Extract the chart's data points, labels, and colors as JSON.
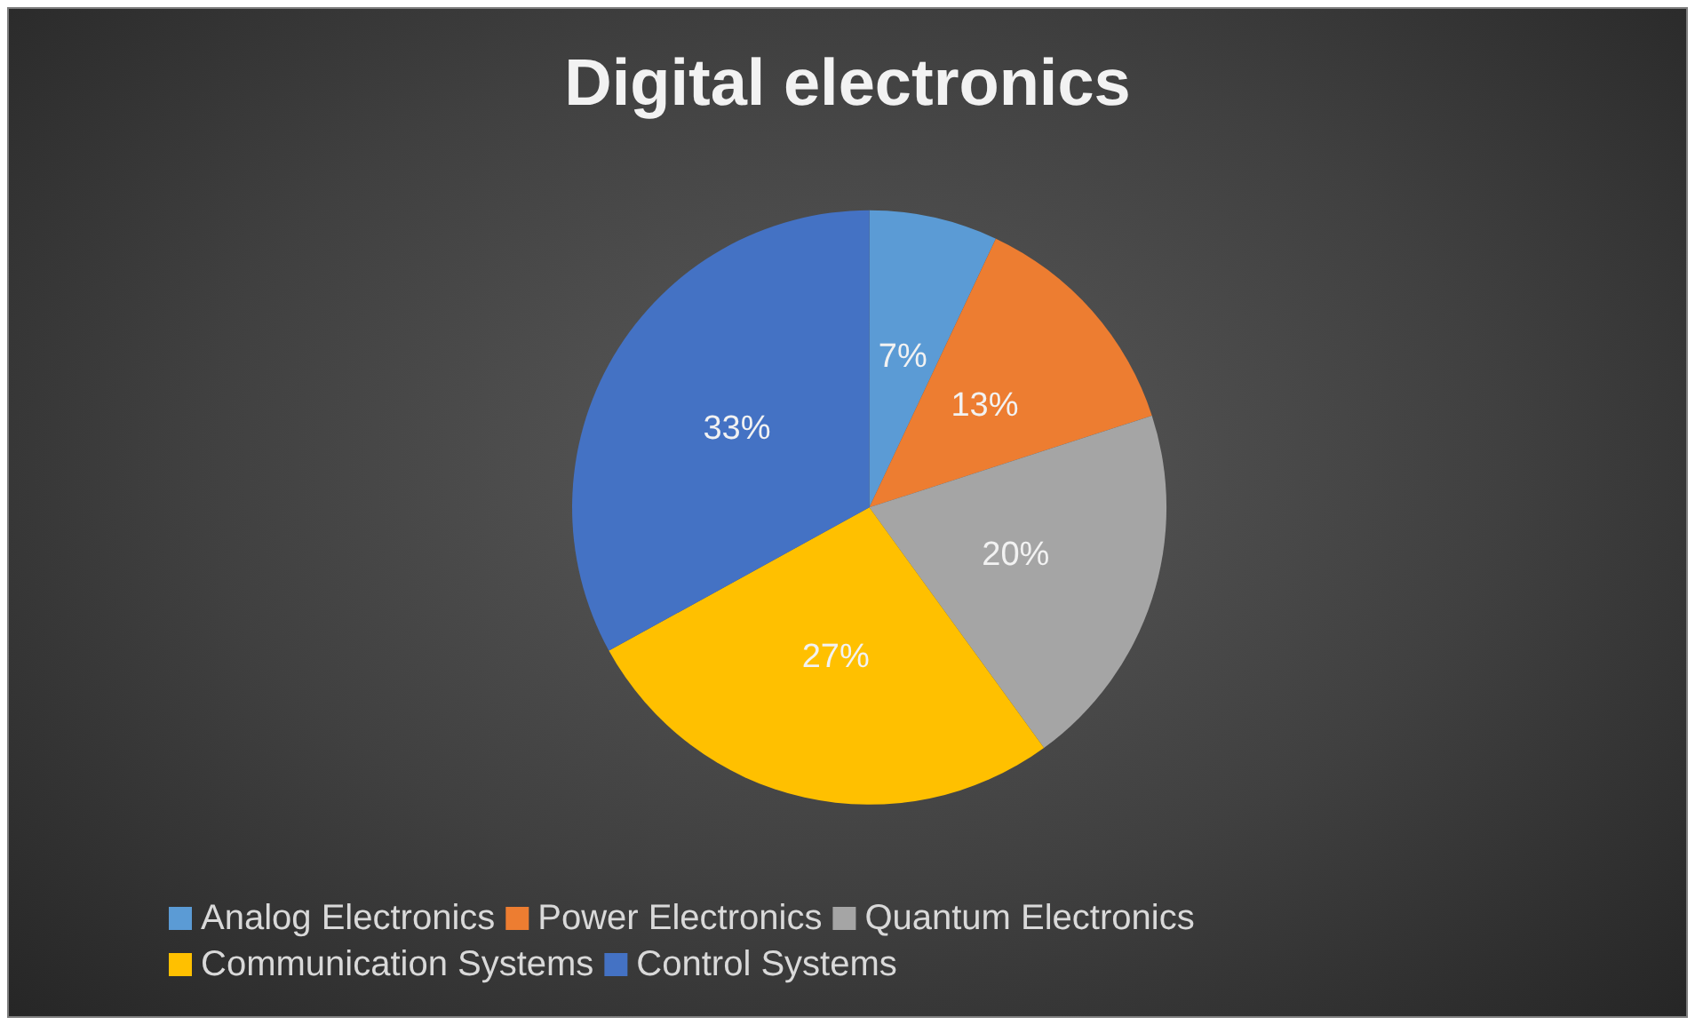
{
  "chart_data": {
    "type": "pie",
    "title": "Digital electronics",
    "categories": [
      "Analog Electronics",
      "Power Electronics",
      "Quantum Electronics",
      "Communication Systems",
      "Control Systems"
    ],
    "values": [
      7,
      13,
      20,
      27,
      33
    ],
    "colors": [
      "#5b9bd5",
      "#ed7d31",
      "#a5a5a5",
      "#ffc000",
      "#4472c4"
    ],
    "value_labels": [
      "7%",
      "13%",
      "20%",
      "27%",
      "33%"
    ],
    "legend": "bottom"
  }
}
